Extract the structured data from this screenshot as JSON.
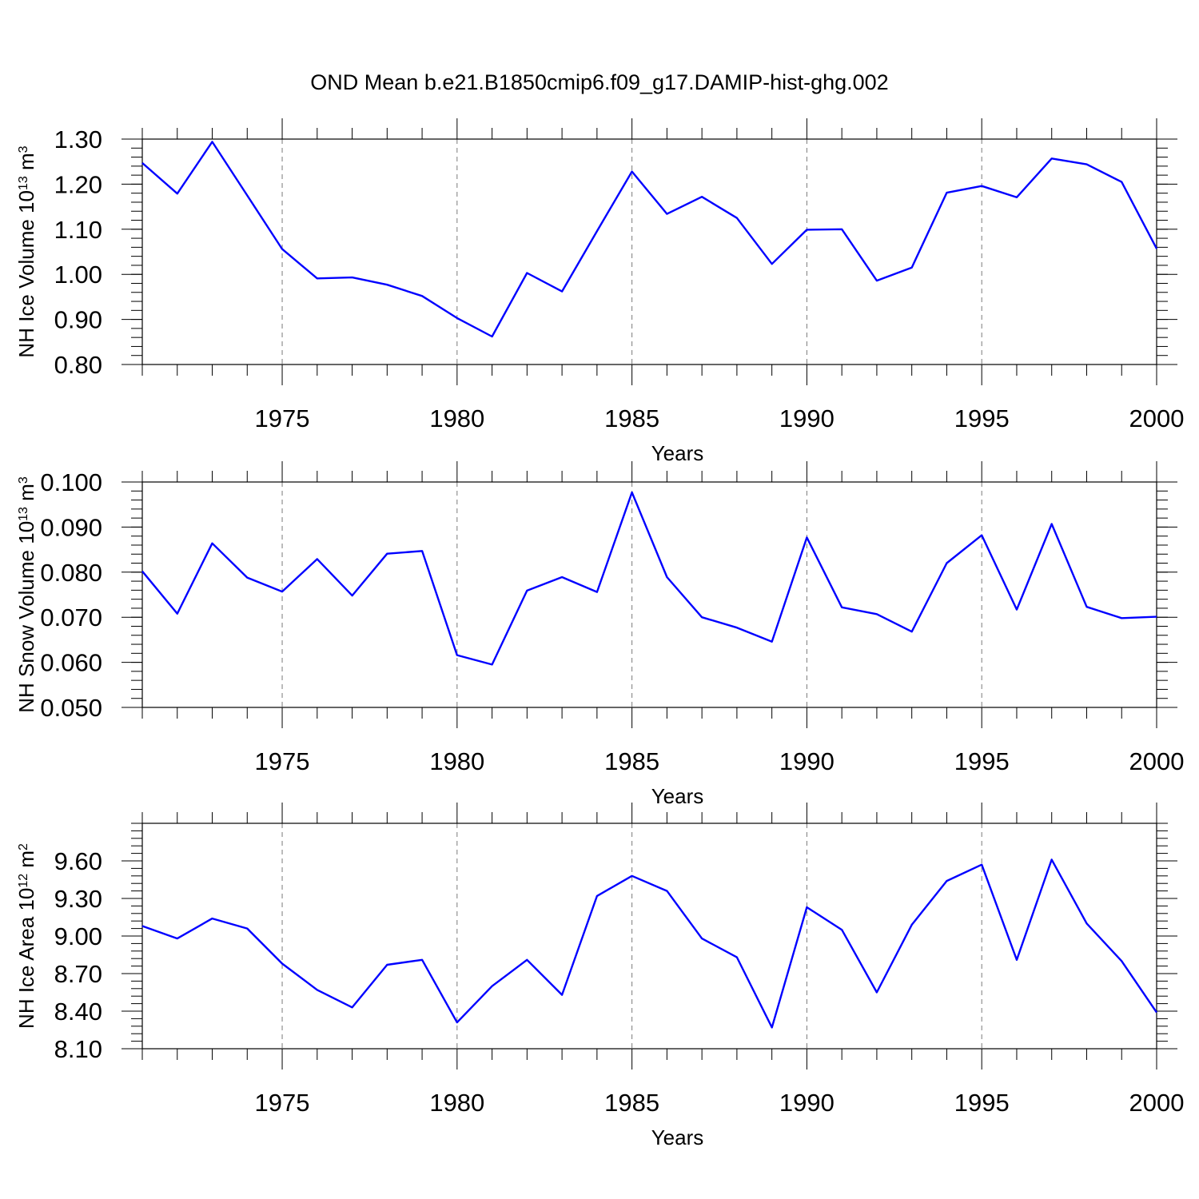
{
  "figure_title": "OND Mean b.e21.B1850cmip6.f09_g17.DAMIP-hist-ghg.002",
  "colors": {
    "series": "#0000ff",
    "grid": "#7a7a7a",
    "axis": "#000000"
  },
  "chart_data": [
    {
      "type": "line",
      "xlabel": "Years",
      "ylabel": {
        "prefix": "NH Ice Volume 10",
        "exp": "13",
        "unit": " m",
        "unit_exp": "3"
      },
      "xlim": [
        1971,
        2000
      ],
      "ylim": [
        0.8,
        1.3
      ],
      "x_ticks": [
        1975,
        1980,
        1985,
        1990,
        1995,
        2000
      ],
      "y_ticks": [
        0.8,
        0.9,
        1.0,
        1.1,
        1.2,
        1.3
      ],
      "y_tick_labels": [
        "0.80",
        "0.90",
        "1.00",
        "1.10",
        "1.20",
        "1.30"
      ],
      "y_minor_step": 0.02,
      "grid": "dashed vertical at major x ticks",
      "x": [
        1971,
        1972,
        1973,
        1974,
        1975,
        1976,
        1977,
        1978,
        1979,
        1980,
        1981,
        1982,
        1983,
        1984,
        1985,
        1986,
        1987,
        1988,
        1989,
        1990,
        1991,
        1992,
        1993,
        1994,
        1995,
        1996,
        1997,
        1998,
        1999,
        2000
      ],
      "series": [
        {
          "values": [
            1.247,
            1.179,
            1.294,
            1.175,
            1.056,
            0.991,
            0.993,
            0.977,
            0.952,
            0.903,
            0.862,
            1.003,
            0.962,
            1.096,
            1.228,
            1.134,
            1.172,
            1.125,
            1.023,
            1.099,
            1.1,
            0.986,
            1.015,
            1.181,
            1.196,
            1.171,
            1.257,
            1.244,
            1.205,
            1.057
          ]
        }
      ]
    },
    {
      "type": "line",
      "xlabel": "Years",
      "ylabel": {
        "prefix": "NH Snow Volume 10",
        "exp": "13",
        "unit": " m",
        "unit_exp": "3"
      },
      "xlim": [
        1971,
        2000
      ],
      "ylim": [
        0.05,
        0.1
      ],
      "x_ticks": [
        1975,
        1980,
        1985,
        1990,
        1995,
        2000
      ],
      "y_ticks": [
        0.05,
        0.06,
        0.07,
        0.08,
        0.09,
        0.1
      ],
      "y_tick_labels": [
        "0.050",
        "0.060",
        "0.070",
        "0.080",
        "0.090",
        "0.100"
      ],
      "y_minor_step": 0.002,
      "grid": "dashed vertical at major x ticks",
      "x": [
        1971,
        1972,
        1973,
        1974,
        1975,
        1976,
        1977,
        1978,
        1979,
        1980,
        1981,
        1982,
        1983,
        1984,
        1985,
        1986,
        1987,
        1988,
        1989,
        1990,
        1991,
        1992,
        1993,
        1994,
        1995,
        1996,
        1997,
        1998,
        1999,
        2000
      ],
      "series": [
        {
          "values": [
            0.0802,
            0.0708,
            0.0864,
            0.0788,
            0.0757,
            0.0829,
            0.0748,
            0.0841,
            0.0847,
            0.0616,
            0.0595,
            0.0759,
            0.0789,
            0.0756,
            0.0977,
            0.0789,
            0.07,
            0.0677,
            0.0646,
            0.0877,
            0.0722,
            0.0707,
            0.0668,
            0.082,
            0.0882,
            0.0717,
            0.0907,
            0.0723,
            0.0698,
            0.0701
          ]
        }
      ]
    },
    {
      "type": "line",
      "xlabel": "Years",
      "ylabel": {
        "prefix": "NH Ice Area 10",
        "exp": "12",
        "unit": " m",
        "unit_exp": "2"
      },
      "xlim": [
        1971,
        2000
      ],
      "ylim": [
        8.1,
        9.9
      ],
      "x_ticks": [
        1975,
        1980,
        1985,
        1990,
        1995,
        2000
      ],
      "y_ticks": [
        8.1,
        8.4,
        8.7,
        9.0,
        9.3,
        9.6
      ],
      "y_tick_labels": [
        "8.10",
        "8.40",
        "8.70",
        "9.00",
        "9.30",
        "9.60"
      ],
      "y_minor_step": 0.06,
      "grid": "dashed vertical at major x ticks",
      "x": [
        1971,
        1972,
        1973,
        1974,
        1975,
        1976,
        1977,
        1978,
        1979,
        1980,
        1981,
        1982,
        1983,
        1984,
        1985,
        1986,
        1987,
        1988,
        1989,
        1990,
        1991,
        1992,
        1993,
        1994,
        1995,
        1996,
        1997,
        1998,
        1999,
        2000
      ],
      "series": [
        {
          "values": [
            9.08,
            8.98,
            9.14,
            9.06,
            8.78,
            8.57,
            8.43,
            8.77,
            8.81,
            8.31,
            8.6,
            8.81,
            8.53,
            9.32,
            9.48,
            9.36,
            8.98,
            8.83,
            8.27,
            9.23,
            9.05,
            8.55,
            9.09,
            9.44,
            9.57,
            8.81,
            9.61,
            9.1,
            8.8,
            8.39
          ]
        }
      ]
    }
  ]
}
